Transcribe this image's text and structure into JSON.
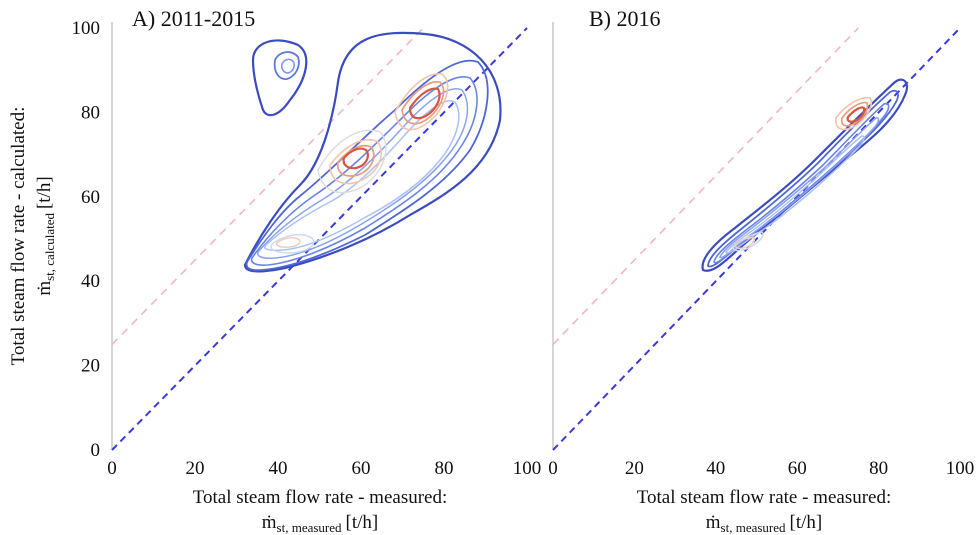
{
  "figure": {
    "colors": {
      "identity_line": "#3a3ad8",
      "offset_line": "#f4b4c8",
      "contour_low": "#3b4cc0",
      "contour_mid": "#dddcdc",
      "contour_high": "#d8553e",
      "axis_spine": "#c8c8c8"
    }
  },
  "chart_data": [
    {
      "type": "contour",
      "title": "A) 2011-2015",
      "xlabel_line1": "Total steam flow rate - measured:",
      "xlabel_line2_main": "ṁ",
      "xlabel_line2_sub": "st, measured",
      "xlabel_line2_unit": "[t/h]",
      "ylabel_line1": "Total steam flow rate - calculated:",
      "ylabel_line2_main": "ṁ",
      "ylabel_line2_sub": "st, calculated",
      "ylabel_line2_unit": "[t/h]",
      "xlim": [
        0,
        100
      ],
      "ylim": [
        0,
        100
      ],
      "xticks": [
        "0",
        "20",
        "40",
        "60",
        "80",
        "100"
      ],
      "yticks": [
        "0",
        "20",
        "40",
        "60",
        "80",
        "100"
      ],
      "reference_lines": [
        {
          "style": "dashed",
          "color": "#3a3ad8",
          "slope": 1,
          "intercept": 0
        },
        {
          "style": "dashed",
          "color": "#f4b4c8",
          "slope": 1,
          "intercept": 25
        }
      ],
      "density_peaks": [
        {
          "x": 43,
          "y": 90
        },
        {
          "x": 41,
          "y": 48
        },
        {
          "x": 62,
          "y": 69
        },
        {
          "x": 78,
          "y": 84
        }
      ]
    },
    {
      "type": "contour",
      "title": "B) 2016",
      "xlabel_line1": "Total steam flow rate - measured:",
      "xlabel_line2_main": "ṁ",
      "xlabel_line2_sub": "st, measured",
      "xlabel_line2_unit": "[t/h]",
      "xlim": [
        0,
        100
      ],
      "ylim": [
        0,
        100
      ],
      "xticks": [
        "0",
        "20",
        "40",
        "60",
        "80",
        "100"
      ],
      "reference_lines": [
        {
          "style": "dashed",
          "color": "#3a3ad8",
          "slope": 1,
          "intercept": 0
        },
        {
          "style": "dashed",
          "color": "#f4b4c8",
          "slope": 1,
          "intercept": 25
        }
      ],
      "density_peaks": [
        {
          "x": 45,
          "y": 48
        },
        {
          "x": 76,
          "y": 82
        }
      ]
    }
  ]
}
